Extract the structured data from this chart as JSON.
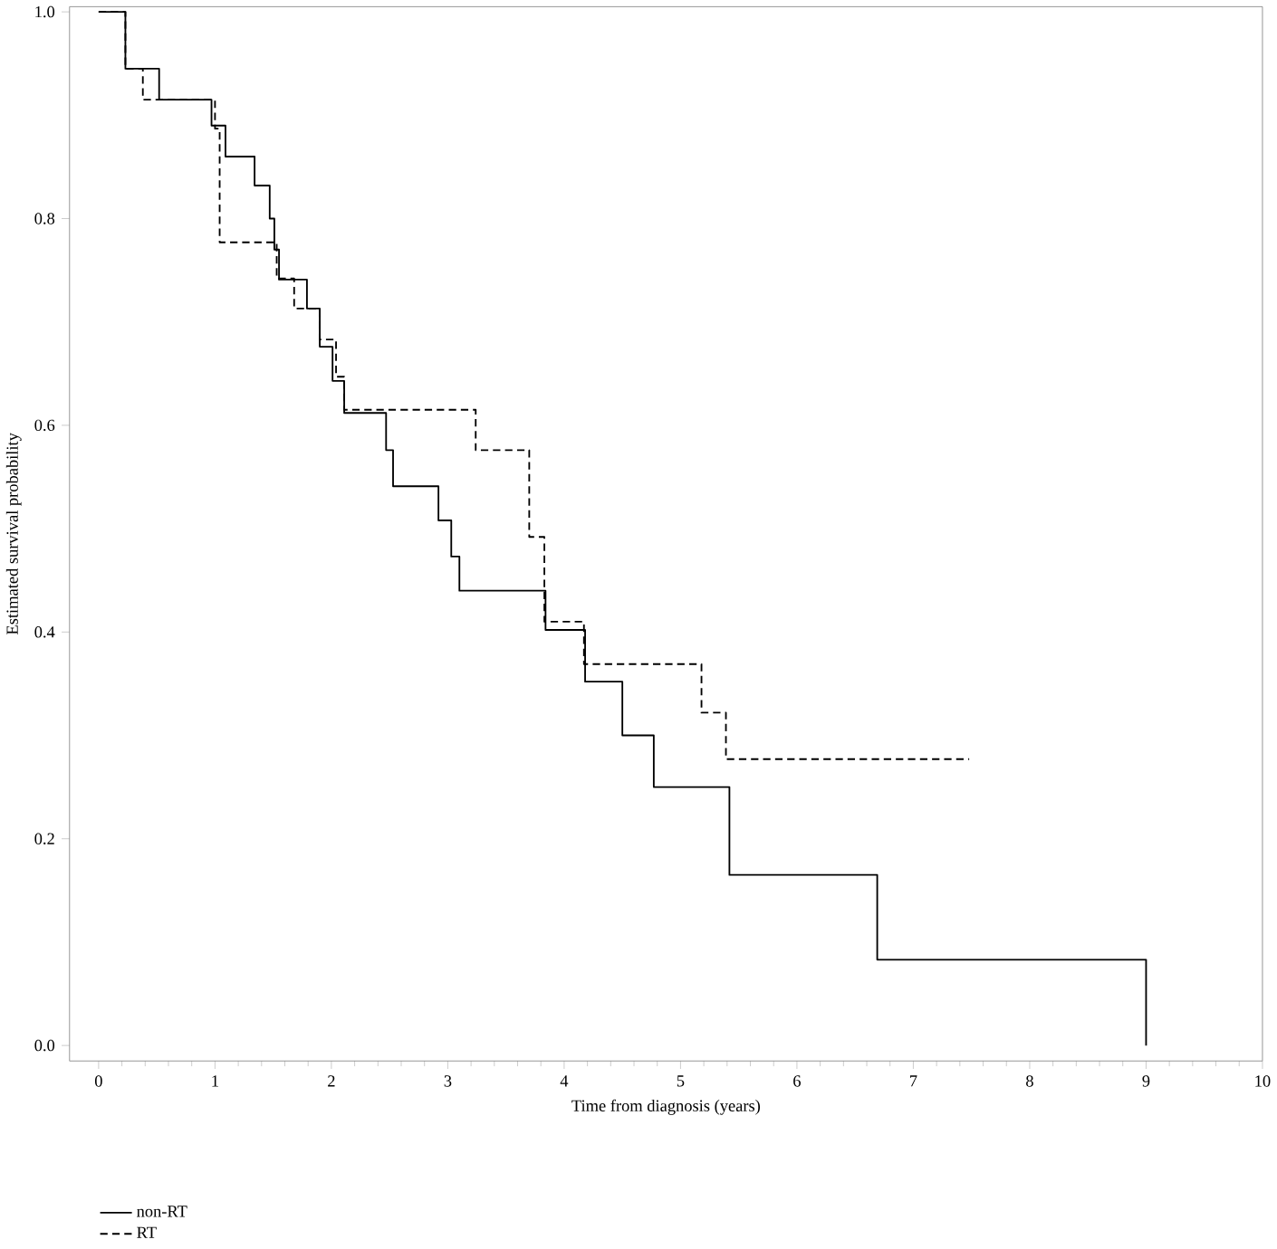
{
  "chart_data": {
    "type": "step",
    "xlabel": "Time from diagnosis (years)",
    "ylabel": "Estimated survival probability",
    "xlim": [
      -0.25,
      10
    ],
    "ylim": [
      -0.015,
      1.005
    ],
    "xticks": [
      0,
      1,
      2,
      3,
      4,
      5,
      6,
      7,
      8,
      9,
      10
    ],
    "yticks": [
      {
        "value": 0,
        "label": "0.0"
      },
      {
        "value": 0.2,
        "label": "0.2"
      },
      {
        "value": 0.4,
        "label": "0.4"
      },
      {
        "value": 0.6,
        "label": "0.6"
      },
      {
        "value": 0.8,
        "label": "0.8"
      },
      {
        "value": 1,
        "label": "1.0"
      }
    ],
    "legend": "bottom",
    "grid": false,
    "marker": "none",
    "series": [
      {
        "name": "non-RT",
        "color": "#000000",
        "line_style": "solid",
        "x": [
          0,
          0.23,
          0.52,
          0.97,
          1.09,
          1.34,
          1.47,
          1.51,
          1.55,
          1.79,
          1.9,
          2.01,
          2.11,
          2.47,
          2.53,
          2.92,
          3.03,
          3.1,
          3.84,
          4.18,
          4.5,
          4.77,
          5.42,
          6.69,
          9.0
        ],
        "values": [
          1,
          0.945,
          0.915,
          0.89,
          0.86,
          0.832,
          0.8,
          0.77,
          0.741,
          0.713,
          0.676,
          0.643,
          0.612,
          0.576,
          0.541,
          0.508,
          0.473,
          0.44,
          0.402,
          0.352,
          0.3,
          0.25,
          0.165,
          0.083,
          0
        ]
      },
      {
        "name": "RT",
        "color": "#000000",
        "line_style": "dashed",
        "x": [
          0,
          0.23,
          0.38,
          1.0,
          1.04,
          1.53,
          1.68,
          1.9,
          2.04,
          2.11,
          3.24,
          3.7,
          3.83,
          4.17,
          5.18,
          5.39,
          7.48
        ],
        "values": [
          1,
          0.945,
          0.915,
          0.887,
          0.777,
          0.742,
          0.713,
          0.683,
          0.647,
          0.615,
          0.576,
          0.492,
          0.41,
          0.369,
          0.322,
          0.277,
          0.277
        ]
      }
    ]
  }
}
